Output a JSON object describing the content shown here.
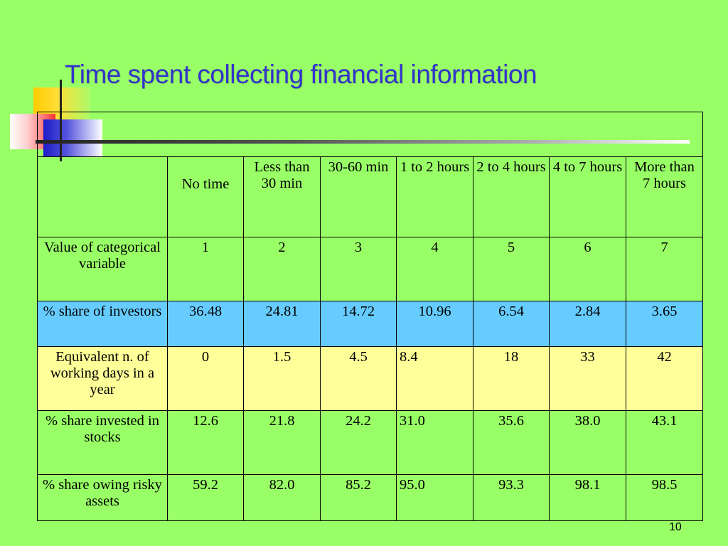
{
  "slide": {
    "title": "Time spent collecting financial information",
    "page_number": "10",
    "colors": {
      "background": "#99ff66",
      "title": "#3333cc",
      "highlight_blue": "#66ccff",
      "highlight_yellow": "#ffff99"
    }
  },
  "table": {
    "columns": [
      "No time",
      "Less than 30 min",
      "30-60 min",
      "1 to 2 hours",
      "2 to 4 hours",
      "4 to 7 hours",
      "More than 7 hours"
    ],
    "rows": [
      {
        "label": "Value of categorical variable",
        "values": [
          "1",
          "2",
          "3",
          "4",
          "5",
          "6",
          "7"
        ]
      },
      {
        "label": "% share of investors",
        "values": [
          "36.48",
          "24.81",
          "14.72",
          "10.96",
          "6.54",
          "2.84",
          "3.65"
        ]
      },
      {
        "label": "Equivalent n. of working days in a year",
        "values": [
          "0",
          "1.5",
          "4.5",
          "8.4",
          "18",
          "33",
          "42"
        ]
      },
      {
        "label": "% share invested in stocks",
        "values": [
          "12.6",
          "21.8",
          "24.2",
          "31.0",
          "35.6",
          "38.0",
          "43.1"
        ]
      },
      {
        "label": "% share owing risky assets",
        "values": [
          "59.2",
          "82.0",
          "85.2",
          "95.0",
          "93.3",
          "98.1",
          "98.5"
        ]
      }
    ]
  }
}
